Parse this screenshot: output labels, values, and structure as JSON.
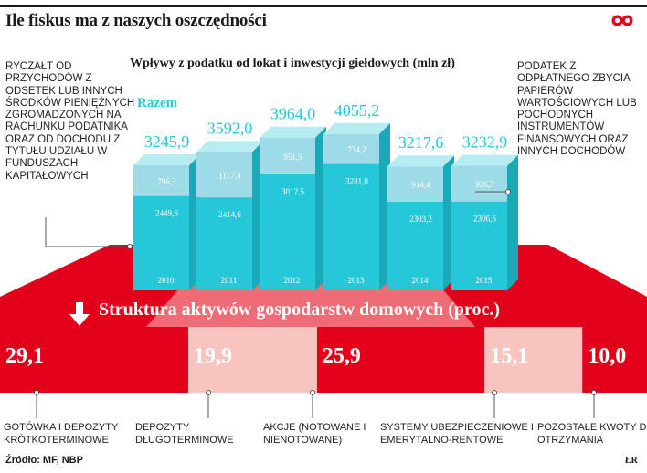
{
  "title": "Ile fiskus ma z naszych oszczędności",
  "logo_icon": "rp-logo-icon",
  "left_note": "Ryczałt od przychodów z odsetek lub innych środków pieniężnych zgromadzonych na rachunku podatnika oraz od dochodu z tytułu udziału w funduszach kapitałowych",
  "right_note": "Podatek z odpłatnego zbycia papierów wartościowych lub pochodnych instrumentów finansowych oraz innych dochodów",
  "section_title": "Struktura aktywów gospodarstw domowych (proc.)",
  "source": "Źródło: MF, NBP",
  "corner_mark": "ŁR",
  "colors": {
    "red": "#e3001b",
    "light_red": "#f28a8a",
    "pink": "#f7c4c0",
    "cyan": "#25c8d8",
    "cyan_light": "#b7ecf3",
    "front_light": "#9fdbe6"
  },
  "chart_data": [
    {
      "type": "bar",
      "stacked": true,
      "title": "Wpływy z podatku od lokat i inwestycji giełdowych (mln zł)",
      "categories": [
        "2010",
        "2011",
        "2012",
        "2013",
        "2014",
        "2015"
      ],
      "series": [
        {
          "values": [
            2449.6,
            2414.6,
            3012.5,
            3281.0,
            2303.2,
            2306.6
          ]
        },
        {
          "values": [
            796.3,
            1177.4,
            951.5,
            774.2,
            914.4,
            926.3
          ]
        }
      ],
      "total_label": "Razem",
      "totals": [
        "3245,9",
        "3592,0",
        "3964,0",
        "4055,2",
        "3217,6",
        "3232,9"
      ],
      "bottom_labels": [
        "2449,6",
        "2414,6",
        "3012,5",
        "3281,0",
        "2303,2",
        "2306,6"
      ],
      "top_labels": [
        "796,3",
        "1177,4",
        "951,5",
        "774,2",
        "914,4",
        "926,3"
      ],
      "ylim": [
        0,
        4100
      ]
    },
    {
      "type": "bar",
      "title": "Struktura aktywów gospodarstw domowych (proc.)",
      "categories": [
        "Gotówka i depozyty krótkoterminowe",
        "Depozyty długoterminowe",
        "Akcje (notowane i nienotowane)",
        "Systemy ubezpieczeniowe i emerytalno-rentowe",
        "Pozostałe kwoty do otrzymania"
      ],
      "values": [
        29.1,
        19.9,
        25.9,
        15.1,
        10.0
      ],
      "value_labels": [
        "29,1",
        "19,9",
        "25,9",
        "15,1",
        "10,0"
      ]
    }
  ]
}
